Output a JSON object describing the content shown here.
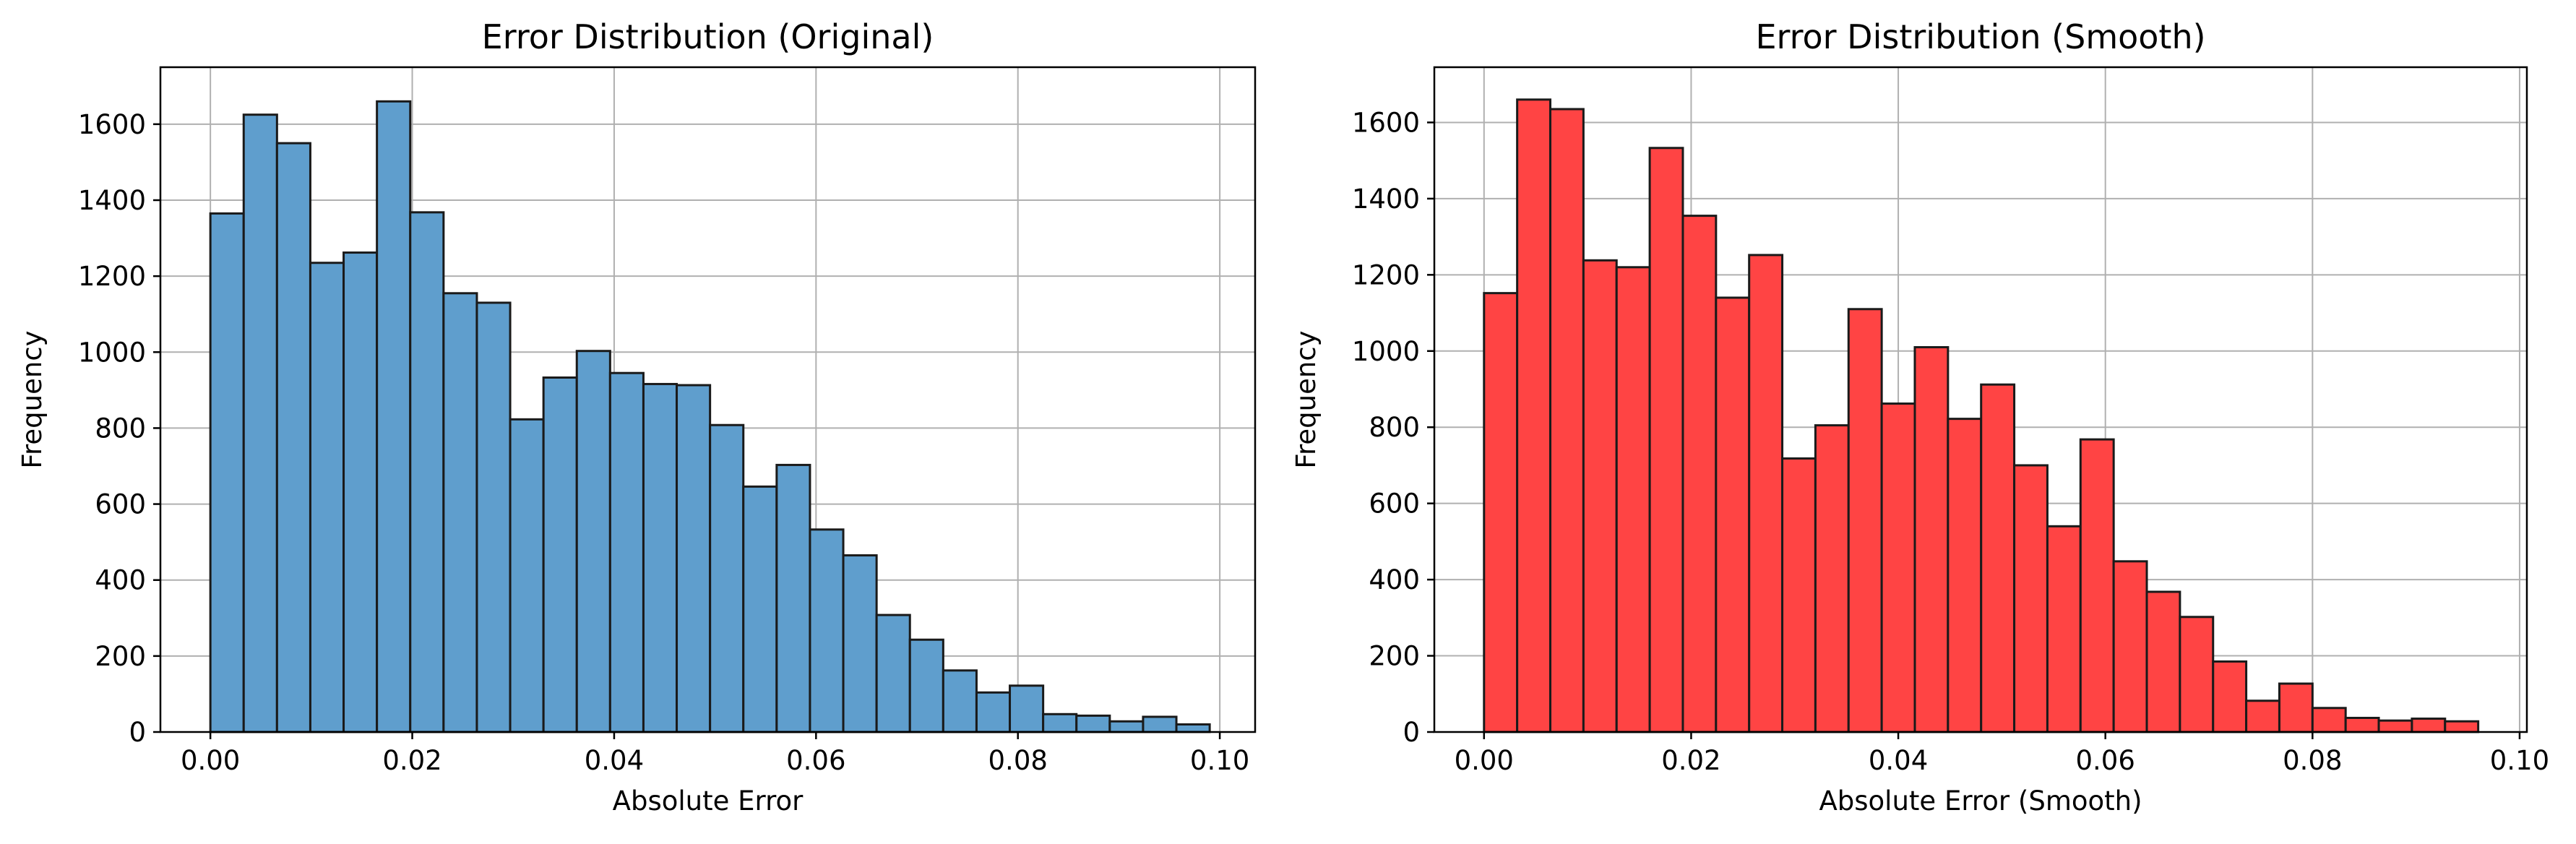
{
  "chart_data": [
    {
      "type": "bar",
      "title": "Error Distribution (Original)",
      "xlabel": "Absolute Error",
      "ylabel": "Frequency",
      "color": "#5f9ecd",
      "edge_color": "#1a1a1a",
      "grid": true,
      "xlim": [
        -0.00495,
        0.1035
      ],
      "ylim": [
        0,
        1750
      ],
      "xticks": [
        0.0,
        0.02,
        0.04,
        0.06,
        0.08,
        0.1
      ],
      "xtick_labels": [
        "0.00",
        "0.02",
        "0.04",
        "0.06",
        "0.08",
        "0.10"
      ],
      "yticks": [
        0,
        200,
        400,
        600,
        800,
        1000,
        1200,
        1400,
        1600
      ],
      "ytick_labels": [
        "0",
        "200",
        "400",
        "600",
        "800",
        "1000",
        "1200",
        "1400",
        "1600"
      ],
      "bin_start": 0.0,
      "bin_width": 0.0033,
      "values": [
        1365,
        1625,
        1550,
        1235,
        1262,
        1660,
        1368,
        1155,
        1130,
        823,
        933,
        1003,
        945,
        916,
        913,
        808,
        646,
        703,
        533,
        465,
        308,
        243,
        162,
        104,
        122,
        47,
        43,
        28,
        40,
        20
      ]
    },
    {
      "type": "bar",
      "title": "Error Distribution (Smooth)",
      "xlabel": "Absolute Error (Smooth)",
      "ylabel": "Frequency",
      "color": "#ff4444",
      "edge_color": "#1a1a1a",
      "grid": true,
      "xlim": [
        -0.0048,
        0.1007
      ],
      "ylim": [
        0,
        1745
      ],
      "xticks": [
        0.0,
        0.02,
        0.04,
        0.06,
        0.08,
        0.1
      ],
      "xtick_labels": [
        "0.00",
        "0.02",
        "0.04",
        "0.06",
        "0.08",
        "0.10"
      ],
      "yticks": [
        0,
        200,
        400,
        600,
        800,
        1000,
        1200,
        1400,
        1600
      ],
      "ytick_labels": [
        "0",
        "200",
        "400",
        "600",
        "800",
        "1000",
        "1200",
        "1400",
        "1600"
      ],
      "bin_start": 0.0,
      "bin_width": 0.0032,
      "values": [
        1152,
        1660,
        1635,
        1238,
        1220,
        1533,
        1355,
        1140,
        1252,
        718,
        805,
        1110,
        862,
        1010,
        822,
        912,
        700,
        540,
        768,
        448,
        368,
        302,
        185,
        82,
        127,
        63,
        37,
        30,
        35,
        28
      ]
    }
  ]
}
